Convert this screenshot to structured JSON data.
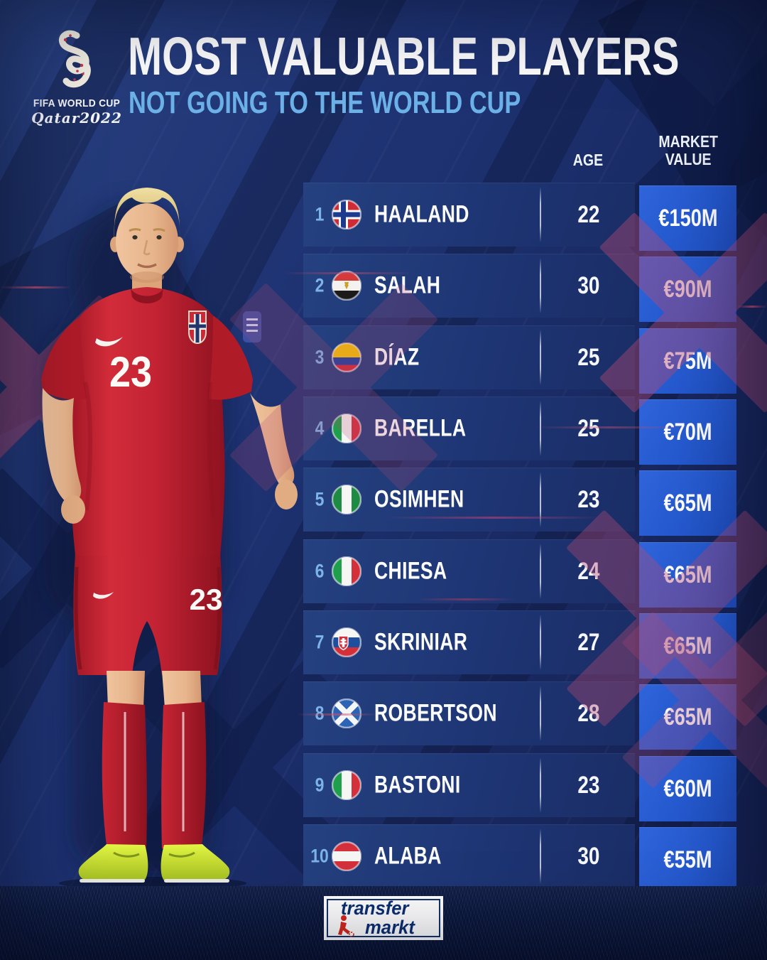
{
  "header": {
    "logo": {
      "line1": "FIFA WORLD CUP",
      "line2": "Qatar2022"
    },
    "title": "MOST VALUABLE PLAYERS",
    "subtitle": "NOT GOING TO THE WORLD CUP"
  },
  "table": {
    "col_age": "AGE",
    "col_value_line1": "MARKET",
    "col_value_line2": "VALUE",
    "rows": [
      {
        "rank": "1",
        "flag": "norway",
        "name": "HAALAND",
        "age": "22",
        "value": "€150M"
      },
      {
        "rank": "2",
        "flag": "egypt",
        "name": "SALAH",
        "age": "30",
        "value": "€90M"
      },
      {
        "rank": "3",
        "flag": "colombia",
        "name": "DÍAZ",
        "age": "25",
        "value": "€75M"
      },
      {
        "rank": "4",
        "flag": "italy",
        "name": "BARELLA",
        "age": "25",
        "value": "€70M"
      },
      {
        "rank": "5",
        "flag": "nigeria",
        "name": "OSIMHEN",
        "age": "23",
        "value": "€65M"
      },
      {
        "rank": "6",
        "flag": "italy",
        "name": "CHIESA",
        "age": "24",
        "value": "€65M"
      },
      {
        "rank": "7",
        "flag": "slovakia",
        "name": "SKRINIAR",
        "age": "27",
        "value": "€65M"
      },
      {
        "rank": "8",
        "flag": "scotland",
        "name": "ROBERTSON",
        "age": "28",
        "value": "€65M"
      },
      {
        "rank": "9",
        "flag": "italy",
        "name": "BASTONI",
        "age": "23",
        "value": "€60M"
      },
      {
        "rank": "10",
        "flag": "austria",
        "name": "ALABA",
        "age": "30",
        "value": "€55M"
      }
    ]
  },
  "footer": {
    "brand_line1": "transfer",
    "brand_line2": "markt"
  },
  "colors": {
    "accent_value_blue": "#2a5ad2",
    "row_blue": "#1e3574",
    "rank_blue": "#7cb4e9",
    "subtitle_blue": "#6cb2e8",
    "x_mark_red": "#b64a72",
    "jersey_red": "#c8222e",
    "brand_navy": "#0c2f72",
    "brand_red": "#d6291e"
  },
  "chart_data": {
    "type": "table",
    "title": "MOST VALUABLE PLAYERS",
    "subtitle": "NOT GOING TO THE WORLD CUP",
    "columns": [
      "Rank",
      "Country",
      "Player",
      "Age",
      "Market Value"
    ],
    "rows": [
      [
        1,
        "Norway",
        "HAALAND",
        22,
        "€150M"
      ],
      [
        2,
        "Egypt",
        "SALAH",
        30,
        "€90M"
      ],
      [
        3,
        "Colombia",
        "DÍAZ",
        25,
        "€75M"
      ],
      [
        4,
        "Italy",
        "BARELLA",
        25,
        "€70M"
      ],
      [
        5,
        "Nigeria",
        "OSIMHEN",
        23,
        "€65M"
      ],
      [
        6,
        "Italy",
        "CHIESA",
        24,
        "€65M"
      ],
      [
        7,
        "Slovakia",
        "SKRINIAR",
        27,
        "€65M"
      ],
      [
        8,
        "Scotland",
        "ROBERTSON",
        28,
        "€65M"
      ],
      [
        9,
        "Italy",
        "BASTONI",
        23,
        "€60M"
      ],
      [
        10,
        "Austria",
        "ALABA",
        30,
        "€55M"
      ]
    ],
    "legend_position": "none",
    "grid": false
  }
}
